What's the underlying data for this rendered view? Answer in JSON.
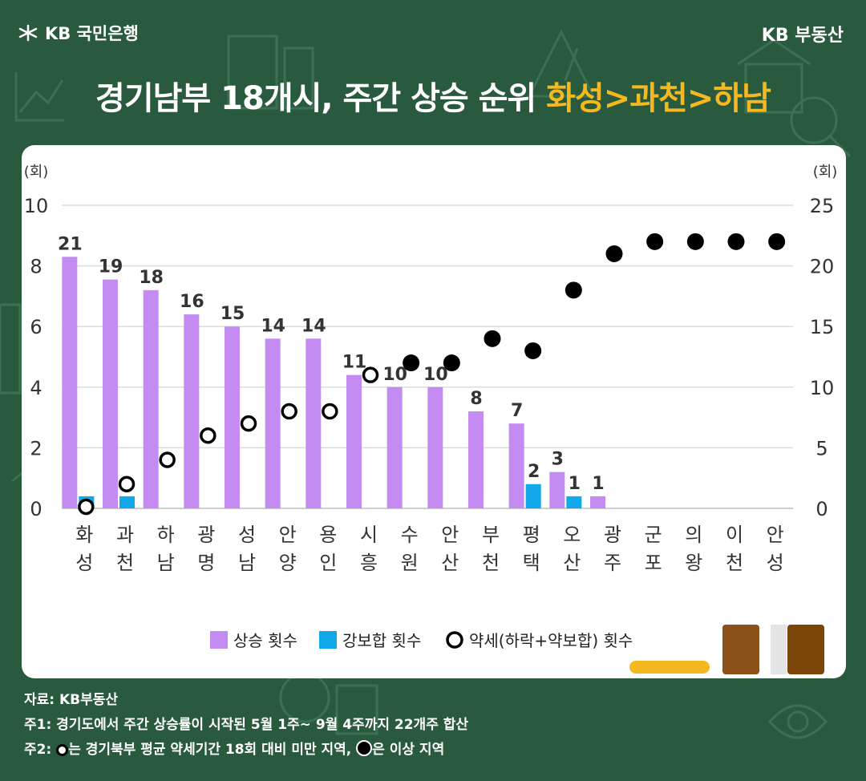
{
  "header": {
    "bank_brand": "KB 국민은행",
    "realty_brand": "KB 부동산",
    "title_main": "경기남부 18개시, 주간 상승 순위 ",
    "title_highlight": "화성>과천>하남"
  },
  "colors": {
    "background": "#2a5a3d",
    "rise": "#c48cf2",
    "strong": "#11a9e9",
    "highlight": "#f6b81f",
    "dot": "#000000"
  },
  "chart_data": {
    "type": "bar",
    "title": "경기남부 18개시, 주간 상승 순위 화성>과천>하남",
    "categories": [
      "화성",
      "과천",
      "하남",
      "광명",
      "성남",
      "안양",
      "용인",
      "시흥",
      "수원",
      "안산",
      "부천",
      "평택",
      "오산",
      "광주",
      "군포",
      "의왕",
      "이천",
      "안성"
    ],
    "category_labels": [
      [
        "화",
        "성"
      ],
      [
        "과",
        "천"
      ],
      [
        "하",
        "남"
      ],
      [
        "광",
        "명"
      ],
      [
        "성",
        "남"
      ],
      [
        "안",
        "양"
      ],
      [
        "용",
        "인"
      ],
      [
        "시",
        "흥"
      ],
      [
        "수",
        "원"
      ],
      [
        "안",
        "산"
      ],
      [
        "부",
        "천"
      ],
      [
        "평",
        "택"
      ],
      [
        "오",
        "산"
      ],
      [
        "광",
        "주"
      ],
      [
        "군",
        "포"
      ],
      [
        "의",
        "왕"
      ],
      [
        "이",
        "천"
      ],
      [
        "안",
        "성"
      ]
    ],
    "left_axis": {
      "unit_label": "(회)",
      "ylim": [
        0,
        10
      ],
      "ticks": [
        "0",
        "2",
        "4",
        "6",
        "8",
        "10"
      ]
    },
    "right_axis": {
      "unit_label": "(회)",
      "ylim": [
        0,
        25
      ],
      "ticks": [
        "0",
        "5",
        "10",
        "15",
        "20",
        "25"
      ]
    },
    "series": [
      {
        "name": "상승 횟수",
        "kind": "bar",
        "axis": "left",
        "values": [
          8.3,
          7.55,
          7.2,
          6.4,
          6.0,
          5.6,
          5.6,
          4.4,
          4.0,
          4.0,
          3.2,
          2.8,
          1.2,
          0.4,
          0,
          0,
          0,
          0
        ],
        "data_labels": [
          "21",
          "19",
          "18",
          "16",
          "15",
          "14",
          "14",
          "11",
          "10",
          "10",
          "8",
          "7",
          "3",
          "1",
          "",
          "",
          "",
          ""
        ]
      },
      {
        "name": "강보합 횟수",
        "kind": "bar",
        "axis": "left",
        "values": [
          0.4,
          0.4,
          0,
          0,
          0,
          0,
          0,
          0,
          0,
          0,
          0,
          0.8,
          0.4,
          0,
          0,
          0,
          0,
          0
        ],
        "data_labels": [
          "",
          "",
          "",
          "",
          "",
          "",
          "",
          "",
          "",
          "",
          "",
          "2",
          "1",
          "",
          "",
          "",
          "",
          ""
        ]
      },
      {
        "name": "약세(하락+약보합) 횟수",
        "kind": "dot",
        "axis": "right",
        "values": [
          0,
          2,
          4,
          6,
          7,
          8,
          8,
          11,
          12,
          12,
          14,
          13,
          18,
          21,
          22,
          22,
          22,
          22
        ],
        "style": [
          "open",
          "open",
          "open",
          "open",
          "open",
          "open",
          "open",
          "open",
          "filled",
          "filled",
          "filled",
          "filled",
          "filled",
          "filled",
          "filled",
          "filled",
          "filled",
          "filled"
        ]
      }
    ],
    "legend": {
      "items": [
        "상승 횟수",
        "강보합 횟수",
        "약세(하락+약보합) 횟수"
      ],
      "position": "bottom-center"
    },
    "grid": true
  },
  "footer": {
    "source": "자료: KB부동산",
    "note1": "주1: 경기도에서 주간 상승률이 시작된 5월 1주~ 9월 4주까지 22개주 합산",
    "note2_prefix": "주2: ",
    "note2_mid": "는 경기북부 평균 약세기간 18회 대비 미만 지역, ",
    "note2_suffix": "은 이상 지역"
  }
}
